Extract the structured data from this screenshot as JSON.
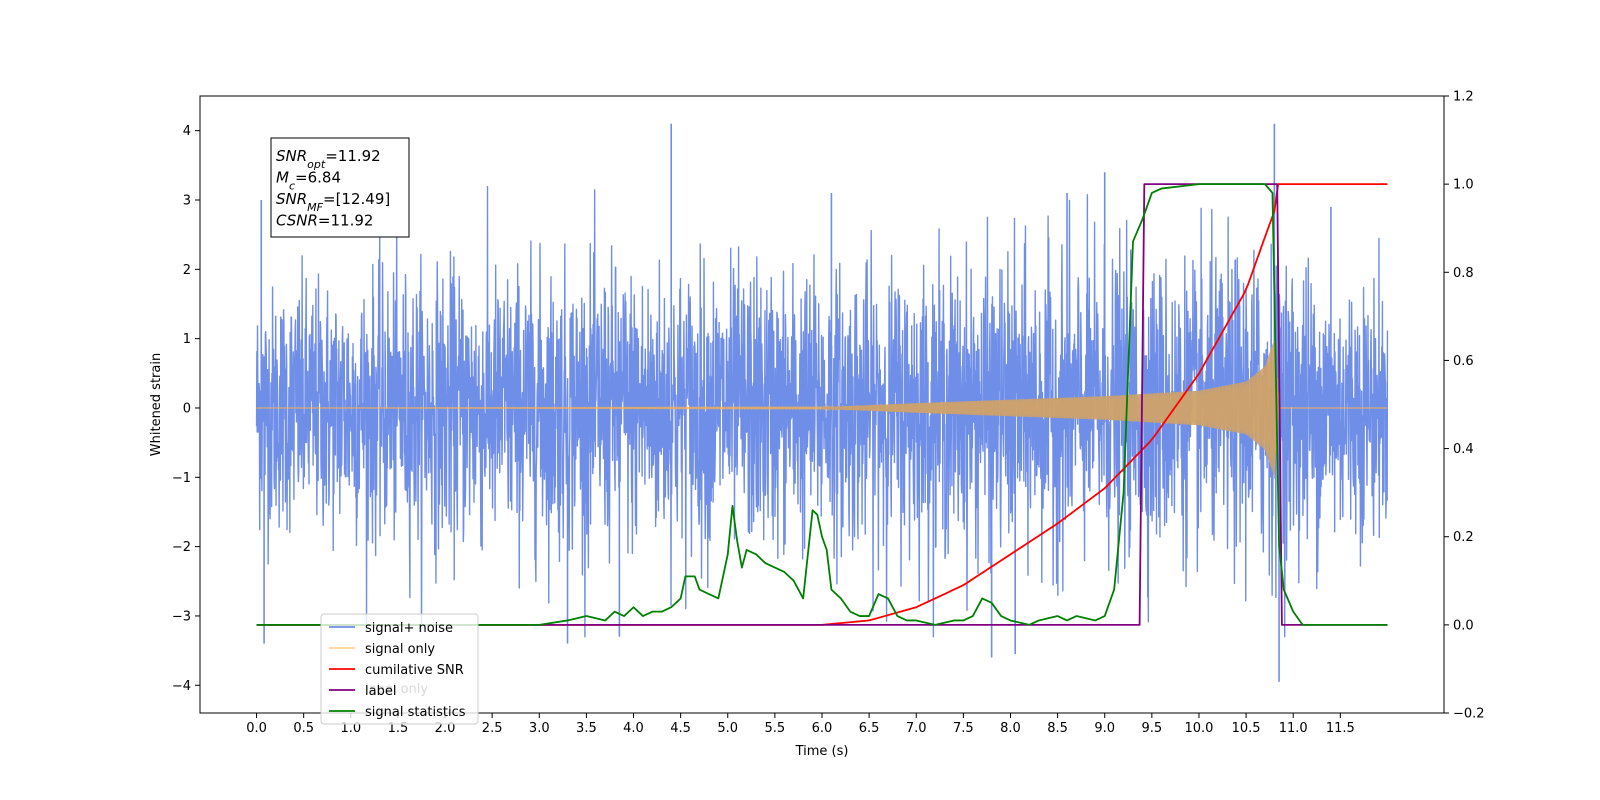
{
  "chart_data": {
    "type": "line",
    "title": "",
    "xlabel": "Time (s)",
    "ylabel": "Whitened strain",
    "y2label": "",
    "xlim": [
      -0.6,
      12.6
    ],
    "ylim": [
      -4.4,
      4.5
    ],
    "y2lim": [
      -0.2,
      1.2
    ],
    "x_ticks": [
      "0.0",
      "0.5",
      "1.0",
      "1.5",
      "2.0",
      "2.5",
      "3.0",
      "3.5",
      "4.0",
      "4.5",
      "5.0",
      "5.5",
      "6.0",
      "6.5",
      "7.0",
      "7.5",
      "8.0",
      "8.5",
      "9.0",
      "9.5",
      "10.0",
      "10.5",
      "11.0",
      "11.5"
    ],
    "y_ticks": [
      "4",
      "3",
      "2",
      "1",
      "0",
      "−1",
      "−2",
      "−3",
      "−4"
    ],
    "y2_ticks": [
      "1.2",
      "1.0",
      "0.8",
      "0.6",
      "0.4",
      "0.2",
      "0.0",
      "−0.2"
    ],
    "grid": false,
    "legend_position": "lower-left",
    "annotation": {
      "lines": [
        {
          "base": "SNR",
          "sub": "opt",
          "value": "=11.92"
        },
        {
          "base": "M",
          "sub": "c",
          "value": "=6.84"
        },
        {
          "base": "SNR",
          "sub": "MF",
          "value": "=[12.49]"
        },
        {
          "base": "CSNR",
          "sub": "",
          "value": "=11.92"
        }
      ]
    },
    "series": [
      {
        "name": "signal+ noise",
        "axis": "left",
        "color": "#6f8ee8",
        "description_points": "noise band approx ±2.3 std envelope, spikes to ±4.1",
        "envelope_x": [
          0.0,
          2.0,
          4.0,
          6.0,
          8.0,
          9.0,
          10.0,
          10.8,
          11.5,
          12.0
        ],
        "envelope_upper": [
          2.2,
          2.5,
          2.6,
          2.5,
          2.6,
          2.7,
          2.6,
          2.9,
          2.4,
          2.2
        ],
        "envelope_lower": [
          -2.3,
          -2.5,
          -2.6,
          -2.5,
          -2.6,
          -2.7,
          -2.6,
          -2.9,
          -2.4,
          -2.3
        ],
        "spikes": [
          [
            0.05,
            3.0
          ],
          [
            0.08,
            -3.4
          ],
          [
            3.3,
            -3.4
          ],
          [
            4.4,
            4.1
          ],
          [
            3.85,
            -3.3
          ],
          [
            6.1,
            3.1
          ],
          [
            7.8,
            -3.6
          ],
          [
            8.05,
            -3.55
          ],
          [
            8.6,
            3.1
          ],
          [
            9.0,
            3.4
          ],
          [
            10.8,
            4.1
          ],
          [
            10.85,
            -3.95
          ],
          [
            11.4,
            2.9
          ]
        ]
      },
      {
        "name": "signal only",
        "axis": "left",
        "color": "#ffb347",
        "chirp_x": [
          0.0,
          6.0,
          7.0,
          8.0,
          9.0,
          10.0,
          10.5,
          10.7,
          10.8,
          10.85
        ],
        "chirp_amp": [
          0.0,
          0.01,
          0.07,
          0.12,
          0.17,
          0.25,
          0.38,
          0.6,
          1.0,
          0.0
        ]
      },
      {
        "name": "cumilative SNR",
        "axis": "right",
        "color": "#ff0000",
        "x": [
          0.0,
          6.0,
          6.5,
          7.0,
          7.5,
          8.0,
          8.5,
          9.0,
          9.5,
          10.0,
          10.5,
          10.7,
          10.82,
          10.83,
          12.0
        ],
        "y": [
          0.0,
          0.0,
          0.01,
          0.04,
          0.09,
          0.16,
          0.23,
          0.31,
          0.42,
          0.57,
          0.76,
          0.88,
          0.95,
          1.0,
          1.0
        ]
      },
      {
        "name": "label",
        "axis": "right",
        "color": "#800080",
        "x": [
          0.0,
          9.37,
          9.42,
          10.83,
          10.88,
          12.0
        ],
        "y": [
          0.0,
          0.0,
          1.0,
          1.0,
          0.0,
          0.0
        ]
      },
      {
        "name": "signal statistics",
        "axis": "right",
        "color": "#008000",
        "x": [
          0.0,
          3.0,
          3.3,
          3.5,
          3.7,
          3.8,
          3.9,
          4.0,
          4.1,
          4.2,
          4.3,
          4.4,
          4.5,
          4.55,
          4.65,
          4.7,
          4.8,
          4.9,
          5.0,
          5.05,
          5.1,
          5.15,
          5.2,
          5.3,
          5.4,
          5.5,
          5.6,
          5.7,
          5.8,
          5.9,
          5.95,
          6.0,
          6.05,
          6.1,
          6.2,
          6.3,
          6.4,
          6.5,
          6.6,
          6.7,
          6.8,
          6.9,
          7.0,
          7.2,
          7.4,
          7.5,
          7.6,
          7.7,
          7.8,
          7.9,
          8.0,
          8.2,
          8.3,
          8.5,
          8.6,
          8.7,
          8.9,
          9.0,
          9.1,
          9.2,
          9.3,
          9.4,
          9.5,
          9.6,
          10.0,
          10.7,
          10.78,
          10.85,
          10.9,
          11.0,
          11.1,
          12.0
        ],
        "y": [
          0.0,
          0.0,
          0.01,
          0.02,
          0.01,
          0.03,
          0.02,
          0.04,
          0.02,
          0.03,
          0.03,
          0.04,
          0.06,
          0.11,
          0.11,
          0.08,
          0.07,
          0.06,
          0.16,
          0.27,
          0.19,
          0.13,
          0.17,
          0.16,
          0.14,
          0.13,
          0.12,
          0.1,
          0.06,
          0.26,
          0.25,
          0.2,
          0.17,
          0.08,
          0.06,
          0.03,
          0.02,
          0.02,
          0.07,
          0.06,
          0.02,
          0.01,
          0.01,
          0.0,
          0.01,
          0.01,
          0.02,
          0.06,
          0.05,
          0.02,
          0.01,
          0.0,
          0.01,
          0.02,
          0.01,
          0.02,
          0.01,
          0.02,
          0.08,
          0.3,
          0.87,
          0.92,
          0.98,
          0.99,
          1.0,
          1.0,
          0.98,
          0.18,
          0.08,
          0.03,
          0.0,
          0.0
        ]
      }
    ],
    "legend_extra_hidden": "label only"
  }
}
